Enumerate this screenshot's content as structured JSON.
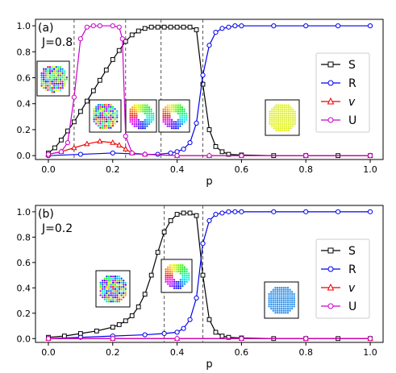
{
  "chart_data": [
    {
      "type": "line",
      "panel_label": "(a)",
      "parameter_label": "J=0.8",
      "xlabel": "p",
      "ylabel": "",
      "xlim": [
        -0.04,
        1.04
      ],
      "ylim": [
        -0.03,
        1.05
      ],
      "xticks": [
        0.0,
        0.2,
        0.4,
        0.6,
        0.8,
        1.0
      ],
      "xtick_labels": [
        "0.0",
        "0.2",
        "0.4",
        "0.6",
        "0.8",
        "1.0"
      ],
      "yticks": [
        0.0,
        0.2,
        0.4,
        0.6,
        0.8,
        1.0
      ],
      "ytick_labels": [
        "0.0",
        "0.2",
        "0.4",
        "0.6",
        "0.8",
        "1.0"
      ],
      "vlines": [
        0.08,
        0.24,
        0.35,
        0.48
      ],
      "legend_position": "right",
      "series": [
        {
          "name": "S",
          "color": "#000000",
          "marker": "square",
          "x": [
            0.0,
            0.02,
            0.04,
            0.06,
            0.08,
            0.1,
            0.12,
            0.14,
            0.16,
            0.18,
            0.2,
            0.22,
            0.24,
            0.26,
            0.28,
            0.3,
            0.32,
            0.34,
            0.36,
            0.38,
            0.4,
            0.42,
            0.44,
            0.46,
            0.48,
            0.5,
            0.52,
            0.54,
            0.56,
            0.6,
            0.7,
            0.8,
            0.9,
            1.0
          ],
          "y": [
            0.02,
            0.06,
            0.12,
            0.19,
            0.26,
            0.34,
            0.42,
            0.5,
            0.58,
            0.66,
            0.74,
            0.81,
            0.88,
            0.93,
            0.96,
            0.98,
            0.99,
            0.99,
            0.99,
            0.99,
            0.99,
            0.99,
            0.99,
            0.97,
            0.55,
            0.2,
            0.07,
            0.03,
            0.01,
            0.005,
            0.0,
            0.0,
            0.0,
            0.0
          ]
        },
        {
          "name": "R",
          "color": "#0000ee",
          "marker": "circle",
          "x": [
            0.0,
            0.1,
            0.2,
            0.3,
            0.34,
            0.38,
            0.4,
            0.42,
            0.44,
            0.46,
            0.48,
            0.5,
            0.52,
            0.54,
            0.56,
            0.58,
            0.6,
            0.7,
            0.8,
            0.9,
            1.0
          ],
          "y": [
            0.0,
            0.01,
            0.02,
            0.01,
            0.01,
            0.02,
            0.03,
            0.05,
            0.1,
            0.25,
            0.62,
            0.85,
            0.95,
            0.98,
            0.99,
            1.0,
            1.0,
            1.0,
            1.0,
            1.0,
            1.0
          ]
        },
        {
          "name": "v",
          "color": "#ee0000",
          "marker": "triangle",
          "x": [
            0.0,
            0.04,
            0.08,
            0.12,
            0.16,
            0.2,
            0.22,
            0.24,
            0.26,
            0.3,
            0.4,
            0.5,
            0.6,
            0.8,
            1.0
          ],
          "y": [
            0.01,
            0.03,
            0.06,
            0.09,
            0.11,
            0.1,
            0.08,
            0.05,
            0.02,
            0.01,
            0.0,
            0.0,
            0.0,
            0.0,
            0.0
          ]
        },
        {
          "name": "U",
          "color": "#cc00cc",
          "marker": "circle",
          "x": [
            0.0,
            0.04,
            0.06,
            0.08,
            0.1,
            0.12,
            0.14,
            0.16,
            0.2,
            0.22,
            0.23,
            0.24,
            0.26,
            0.3,
            0.4,
            0.5,
            0.6,
            0.8,
            1.0
          ],
          "y": [
            0.01,
            0.03,
            0.1,
            0.45,
            0.9,
            0.99,
            1.0,
            1.0,
            1.0,
            0.99,
            0.9,
            0.15,
            0.02,
            0.01,
            0.0,
            0.0,
            0.0,
            0.0,
            0.0
          ]
        }
      ]
    },
    {
      "type": "line",
      "panel_label": "(b)",
      "parameter_label": "J=0.2",
      "xlabel": "p",
      "ylabel": "",
      "xlim": [
        -0.04,
        1.04
      ],
      "ylim": [
        -0.03,
        1.05
      ],
      "xticks": [
        0.0,
        0.2,
        0.4,
        0.6,
        0.8,
        1.0
      ],
      "xtick_labels": [
        "0.0",
        "0.2",
        "0.4",
        "0.6",
        "0.8",
        "1.0"
      ],
      "yticks": [
        0.0,
        0.2,
        0.4,
        0.6,
        0.8,
        1.0
      ],
      "ytick_labels": [
        "0.0",
        "0.2",
        "0.4",
        "0.6",
        "0.8",
        "1.0"
      ],
      "vlines": [
        0.36,
        0.48
      ],
      "legend_position": "right",
      "series": [
        {
          "name": "S",
          "color": "#000000",
          "marker": "square",
          "x": [
            0.0,
            0.05,
            0.1,
            0.15,
            0.2,
            0.22,
            0.24,
            0.26,
            0.28,
            0.3,
            0.32,
            0.34,
            0.36,
            0.38,
            0.4,
            0.42,
            0.44,
            0.46,
            0.48,
            0.5,
            0.52,
            0.54,
            0.56,
            0.6,
            0.7,
            0.8,
            0.9,
            1.0
          ],
          "y": [
            0.01,
            0.02,
            0.04,
            0.06,
            0.09,
            0.11,
            0.14,
            0.18,
            0.25,
            0.35,
            0.5,
            0.68,
            0.84,
            0.93,
            0.98,
            0.99,
            0.99,
            0.97,
            0.5,
            0.15,
            0.05,
            0.02,
            0.01,
            0.005,
            0.0,
            0.0,
            0.0,
            0.0
          ]
        },
        {
          "name": "R",
          "color": "#0000ee",
          "marker": "circle",
          "x": [
            0.0,
            0.1,
            0.2,
            0.3,
            0.36,
            0.4,
            0.42,
            0.44,
            0.46,
            0.48,
            0.5,
            0.52,
            0.54,
            0.56,
            0.58,
            0.6,
            0.7,
            0.8,
            0.9,
            1.0
          ],
          "y": [
            0.0,
            0.01,
            0.02,
            0.03,
            0.04,
            0.05,
            0.08,
            0.15,
            0.32,
            0.75,
            0.93,
            0.98,
            0.99,
            1.0,
            1.0,
            1.0,
            1.0,
            1.0,
            1.0,
            1.0
          ]
        },
        {
          "name": "v",
          "color": "#ee0000",
          "marker": "triangle",
          "x": [
            0.0,
            0.2,
            0.4,
            0.6,
            0.8,
            1.0
          ],
          "y": [
            0.0,
            0.0,
            0.0,
            0.0,
            0.0,
            0.0
          ]
        },
        {
          "name": "U",
          "color": "#cc00cc",
          "marker": "circle",
          "x": [
            0.0,
            0.2,
            0.4,
            0.6,
            0.8,
            1.0
          ],
          "y": [
            0.0,
            0.0,
            0.0,
            0.0,
            0.0,
            0.0
          ]
        }
      ]
    }
  ]
}
